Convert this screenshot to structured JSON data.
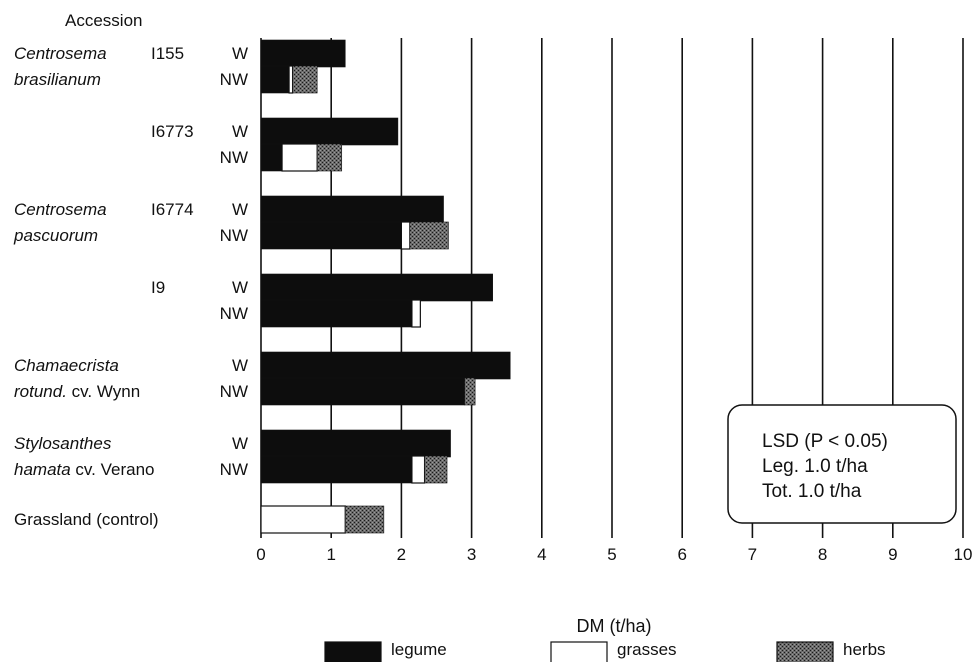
{
  "chart_data": {
    "type": "bar",
    "stacked": true,
    "orientation": "horizontal",
    "header": "Accession",
    "xlabel": "DM (t/ha)",
    "xlim": [
      0,
      10
    ],
    "xticks": [
      "0",
      "1",
      "2",
      "3",
      "4",
      "5",
      "6",
      "7",
      "8",
      "9",
      "10"
    ],
    "grid": "vertical",
    "groups": [
      {
        "name_italic": "Centrosema",
        "name_line2_italic": "brasilianum",
        "name_line2": "",
        "accession": "I155",
        "rows": [
          {
            "label": "W",
            "legume": 1.2,
            "grasses": 0,
            "herbs": 0
          },
          {
            "label": "NW",
            "legume": 0.4,
            "grasses": 0.05,
            "herbs": 0.35
          }
        ]
      },
      {
        "name_italic": "",
        "name_line2_italic": "",
        "name_line2": "",
        "accession": "I6773",
        "rows": [
          {
            "label": "W",
            "legume": 1.95,
            "grasses": 0,
            "herbs": 0
          },
          {
            "label": "NW",
            "legume": 0.3,
            "grasses": 0.5,
            "herbs": 0.35
          }
        ]
      },
      {
        "name_italic": "Centrosema",
        "name_line2_italic": "pascuorum",
        "name_line2": "",
        "accession": "I6774",
        "rows": [
          {
            "label": "W",
            "legume": 2.6,
            "grasses": 0,
            "herbs": 0
          },
          {
            "label": "NW",
            "legume": 2.0,
            "grasses": 0.12,
            "herbs": 0.55
          }
        ]
      },
      {
        "name_italic": "",
        "name_line2_italic": "",
        "name_line2": "",
        "accession": "I9",
        "rows": [
          {
            "label": "W",
            "legume": 3.3,
            "grasses": 0,
            "herbs": 0
          },
          {
            "label": "NW",
            "legume": 2.15,
            "grasses": 0.12,
            "herbs": 0
          }
        ]
      },
      {
        "name_italic": "Chamaecrista",
        "name_line2_italic": "rotund.",
        "name_line2": " cv. Wynn",
        "accession": "",
        "rows": [
          {
            "label": "W",
            "legume": 3.55,
            "grasses": 0,
            "herbs": 0
          },
          {
            "label": "NW",
            "legume": 2.9,
            "grasses": 0,
            "herbs": 0.15
          }
        ]
      },
      {
        "name_italic": "Stylosanthes",
        "name_line2_italic": "hamata",
        "name_line2": " cv. Verano",
        "accession": "",
        "rows": [
          {
            "label": "W",
            "legume": 2.7,
            "grasses": 0,
            "herbs": 0
          },
          {
            "label": "NW",
            "legume": 2.15,
            "grasses": 0.18,
            "herbs": 0.32
          }
        ]
      }
    ],
    "control": {
      "label": "Grassland (control)",
      "legume": 0,
      "grasses": 1.2,
      "herbs": 0.55
    },
    "annotation": {
      "line1": "LSD (P < 0.05)",
      "line2": "Leg.  1.0 t/ha",
      "line3": "Tot.  1.0 t/ha"
    },
    "legend": [
      {
        "key": "legume",
        "label": "legume"
      },
      {
        "key": "grasses",
        "label": "grasses"
      },
      {
        "key": "herbs",
        "label": "herbs"
      }
    ],
    "colors": {
      "legume": "#0d0d0d",
      "grasses": "#ffffff",
      "herbs": "#595959",
      "grid": "#111111"
    }
  }
}
